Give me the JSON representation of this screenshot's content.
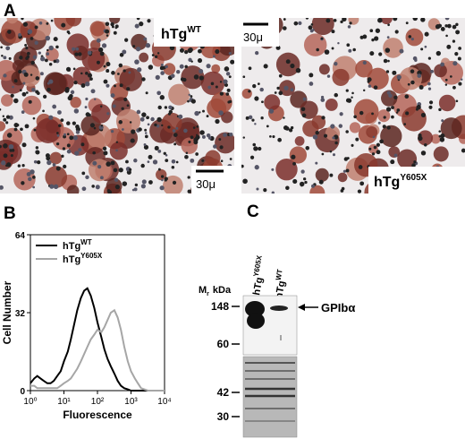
{
  "panel_labels": [
    "A",
    "B",
    "C"
  ],
  "panel_a": {
    "left": {
      "label": "hTg",
      "label_sup": "WT",
      "scale_bar": "30μ"
    },
    "right": {
      "label": "hTg",
      "label_sup": "Y605X",
      "scale_bar": "30μ"
    }
  },
  "chart_data": {
    "type": "line",
    "ylabel": "Cell Number",
    "xlabel": "Fluorescence",
    "xscale": "log",
    "xlim": [
      1,
      10000
    ],
    "ylim": [
      0,
      64
    ],
    "xticks": [
      {
        "value": 1,
        "label": "10⁰"
      },
      {
        "value": 10,
        "label": "10¹"
      },
      {
        "value": 100,
        "label": "10²"
      },
      {
        "value": 1000,
        "label": "10³"
      },
      {
        "value": 10000,
        "label": "10⁴"
      }
    ],
    "yticks": [
      0,
      32,
      64
    ],
    "x": [
      1,
      1.3,
      1.6,
      2,
      2.5,
      3.2,
      4,
      5,
      6.3,
      8,
      10,
      13,
      16,
      20,
      25,
      32,
      40,
      50,
      63,
      80,
      100,
      130,
      160,
      200,
      250,
      320,
      400,
      500,
      630,
      800,
      1000,
      1300,
      1600,
      2000,
      2500,
      3200,
      4000,
      5000,
      10000
    ],
    "series": [
      {
        "name": "hTg",
        "name_sup": "WT",
        "color": "#000000",
        "values": [
          3,
          5,
          6,
          5,
          4,
          3,
          3,
          4,
          6,
          8,
          12,
          16,
          21,
          27,
          33,
          38,
          41,
          42,
          39,
          34,
          28,
          22,
          17,
          13,
          10,
          7,
          4,
          2,
          1,
          0.5,
          0,
          0,
          0,
          0,
          0,
          0,
          0,
          0,
          0
        ]
      },
      {
        "name": "hTg",
        "name_sup": "Y605X",
        "color": "#a6a6a6",
        "values": [
          2,
          2,
          1,
          1,
          1,
          1,
          1,
          1,
          1,
          2,
          3,
          4,
          5,
          7,
          9,
          12,
          15,
          18,
          21,
          23,
          25,
          24,
          26,
          29,
          32,
          33,
          30,
          25,
          18,
          12,
          8,
          5,
          3,
          1,
          0.5,
          0,
          0,
          0,
          0
        ]
      }
    ]
  },
  "panel_c": {
    "mw_label": "M",
    "mw_label_sub": "r",
    "mw_unit": "kDa",
    "lanes": [
      {
        "label": "hTg",
        "label_sup": "Y605X"
      },
      {
        "label": "hTg",
        "label_sup": "WT"
      }
    ],
    "markers": [
      "148",
      "60",
      "42",
      "30"
    ],
    "band_label": "GPIbα"
  }
}
